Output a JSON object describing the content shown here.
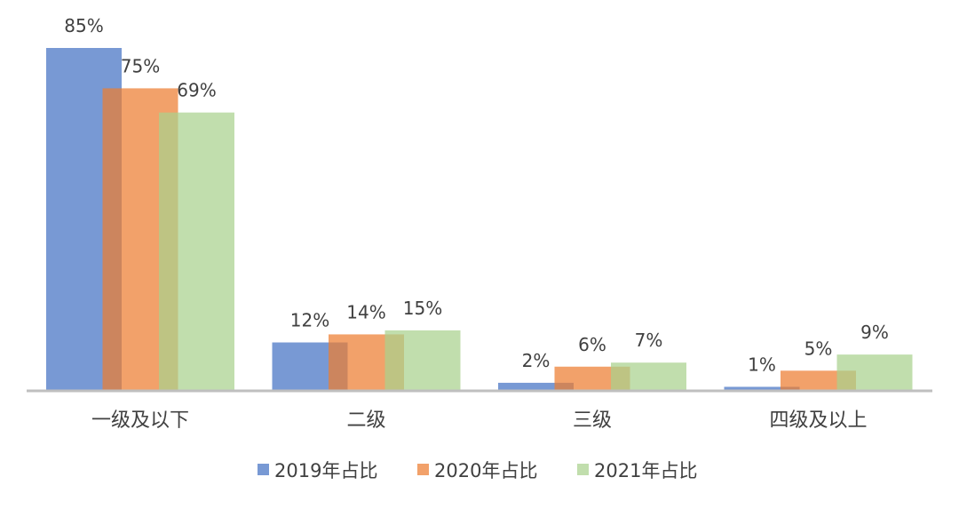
{
  "chart_data": {
    "type": "bar",
    "title": "",
    "xlabel": "",
    "ylabel": "",
    "ylim": [
      0,
      85
    ],
    "grid": false,
    "legend_position": "bottom",
    "categories": [
      "一级及以下",
      "二级",
      "三级",
      "四级及以上"
    ],
    "series": [
      {
        "name": "2019年占比",
        "color": "#4472C4",
        "values": [
          85,
          12,
          2,
          1
        ],
        "labels": [
          "85%",
          "12%",
          "2%",
          "1%"
        ]
      },
      {
        "name": "2020年占比",
        "color": "#ED7D31",
        "values": [
          75,
          14,
          6,
          5
        ],
        "labels": [
          "75%",
          "14%",
          "6%",
          "5%"
        ]
      },
      {
        "name": "2021年占比",
        "color": "#A9D18E",
        "values": [
          69,
          15,
          7,
          9
        ],
        "labels": [
          "69%",
          "15%",
          "7%",
          "9%"
        ]
      }
    ]
  }
}
